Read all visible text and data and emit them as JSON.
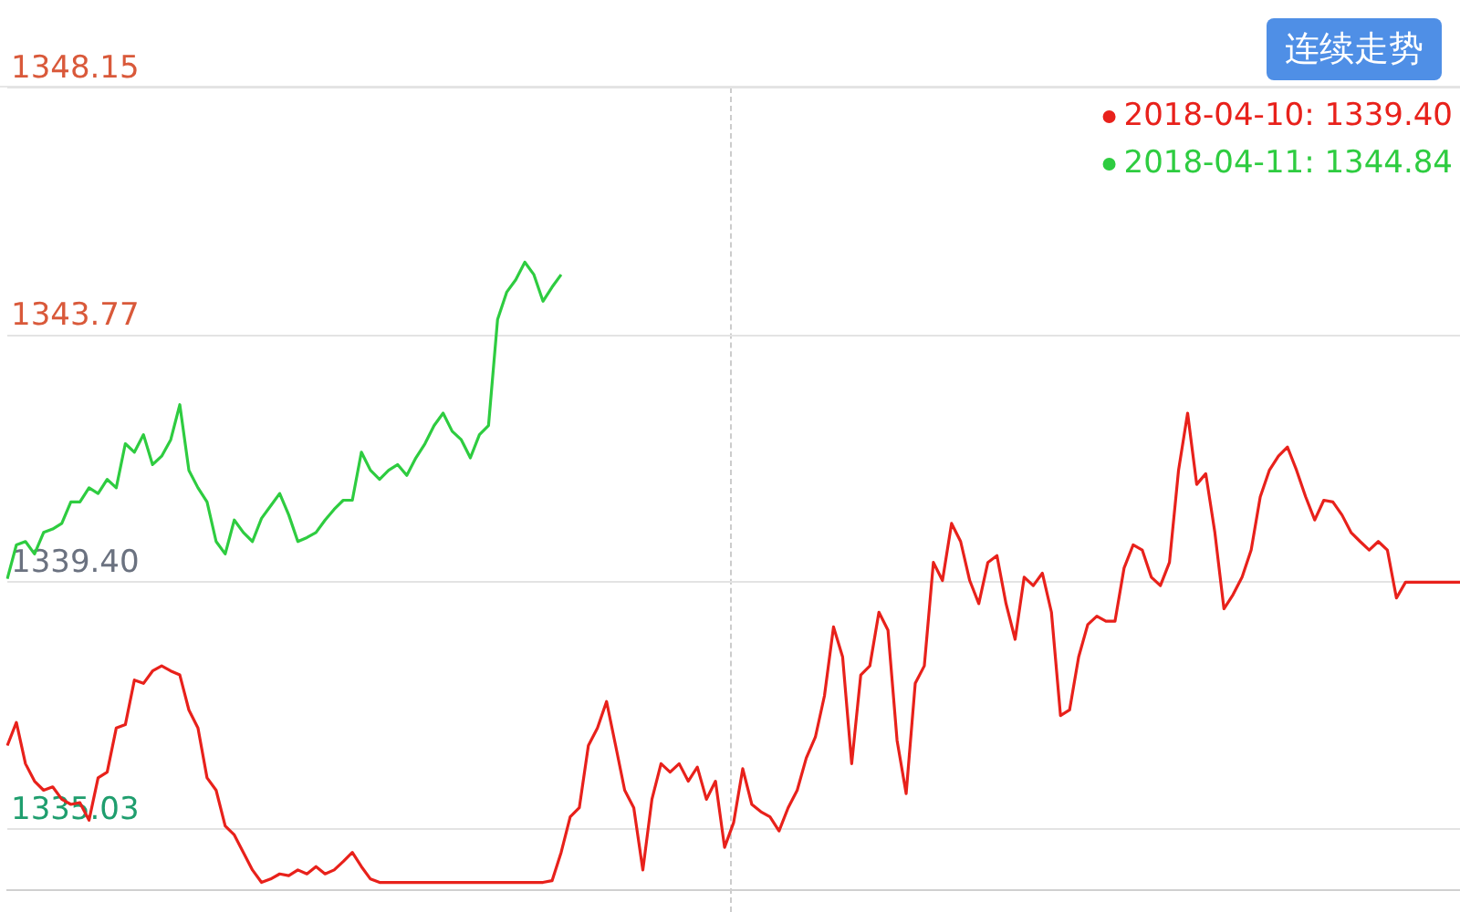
{
  "chart_data": {
    "type": "line",
    "annotations": [
      "连续走势"
    ],
    "categories": [
      null,
      null,
      null,
      null,
      null,
      null,
      null,
      null,
      null,
      null,
      null,
      null,
      null,
      null,
      null,
      null,
      null,
      null,
      null,
      null,
      null,
      null,
      null,
      null,
      null,
      null,
      null,
      null,
      null,
      null,
      null,
      null,
      null,
      null,
      null,
      null,
      null,
      null,
      null,
      null,
      null,
      null,
      null,
      null,
      null,
      null,
      null,
      null,
      null,
      null,
      null,
      null,
      null,
      null,
      null,
      null,
      null,
      null,
      null,
      null,
      null,
      null,
      null,
      null,
      null,
      null,
      null,
      null,
      null,
      null,
      null,
      null,
      null,
      null,
      null,
      null,
      null,
      null,
      null,
      null,
      null,
      null,
      null,
      null,
      null,
      null,
      null,
      null,
      null,
      null,
      null,
      null,
      null,
      null,
      null,
      null,
      null,
      null,
      null,
      null,
      null,
      null,
      null,
      null,
      null,
      null,
      null,
      null,
      null,
      null,
      null,
      null,
      null,
      null,
      null,
      null,
      null,
      null,
      null,
      null,
      null,
      null,
      null,
      null,
      null,
      null,
      null,
      null,
      null,
      null,
      null,
      null,
      null,
      null,
      null,
      null,
      null,
      null,
      null,
      null,
      null,
      null,
      null,
      null,
      null,
      null,
      null,
      null,
      null,
      null,
      null,
      null,
      null,
      null,
      null,
      null,
      null,
      null,
      null,
      null,
      null
    ],
    "series": [
      {
        "name": "2018-04-10: 1339.40",
        "color": "#e8211b",
        "values": [
          1336.51,
          1336.92,
          1336.19,
          1335.88,
          1335.72,
          1335.78,
          1335.56,
          1335.47,
          1335.5,
          1335.19,
          1335.94,
          1336.04,
          1336.82,
          1336.88,
          1337.67,
          1337.61,
          1337.83,
          1337.92,
          1337.83,
          1337.76,
          1337.14,
          1336.82,
          1335.94,
          1335.72,
          1335.09,
          1334.93,
          1334.62,
          1334.31,
          1334.09,
          1334.15,
          1334.24,
          1334.21,
          1334.31,
          1334.24,
          1334.37,
          1334.24,
          1334.31,
          1334.46,
          1334.62,
          1334.37,
          1334.15,
          1334.09,
          1334.09,
          1334.09,
          1334.09,
          1334.09,
          1334.09,
          1334.09,
          1334.09,
          1334.09,
          1334.09,
          1334.09,
          1334.09,
          1334.09,
          1334.09,
          1334.09,
          1334.09,
          1334.09,
          1334.09,
          1334.09,
          1334.12,
          1334.62,
          1335.25,
          1335.41,
          1336.51,
          1336.82,
          1337.29,
          1336.51,
          1335.72,
          1335.41,
          1334.31,
          1335.56,
          1336.19,
          1336.04,
          1336.19,
          1335.88,
          1336.13,
          1335.56,
          1335.88,
          1334.71,
          1335.15,
          1336.1,
          1335.47,
          1335.34,
          1335.25,
          1335.0,
          1335.41,
          1335.72,
          1336.29,
          1336.66,
          1337.39,
          1338.61,
          1338.08,
          1336.19,
          1337.76,
          1337.92,
          1338.87,
          1338.55,
          1336.6,
          1335.66,
          1337.61,
          1337.92,
          1339.75,
          1339.43,
          1340.44,
          1340.12,
          1339.43,
          1339.02,
          1339.75,
          1339.87,
          1339.02,
          1338.39,
          1339.49,
          1339.34,
          1339.56,
          1338.87,
          1337.04,
          1337.14,
          1338.08,
          1338.65,
          1338.8,
          1338.71,
          1338.71,
          1339.65,
          1340.06,
          1339.97,
          1339.49,
          1339.34,
          1339.75,
          1341.38,
          1342.39,
          1341.13,
          1341.32,
          1340.28,
          1338.93,
          1339.18,
          1339.49,
          1339.97,
          1340.91,
          1341.38,
          1341.63,
          1341.79,
          1341.38,
          1340.91,
          1340.5,
          1340.85,
          1340.82,
          1340.59,
          1340.28,
          1340.12,
          1339.97,
          1340.12,
          1339.97,
          1339.12,
          1339.4,
          1339.4,
          1339.4,
          1339.4,
          1339.4,
          1339.4,
          1339.4
        ]
      },
      {
        "name": "2018-04-11: 1344.84",
        "color": "#2ecc40",
        "values": [
          1339.46,
          1340.06,
          1340.12,
          1339.9,
          1340.28,
          1340.34,
          1340.44,
          1340.82,
          1340.82,
          1341.07,
          1340.97,
          1341.22,
          1341.07,
          1341.85,
          1341.7,
          1342.01,
          1341.48,
          1341.63,
          1341.92,
          1342.54,
          1341.38,
          1341.07,
          1340.82,
          1340.12,
          1339.9,
          1340.5,
          1340.28,
          1340.12,
          1340.53,
          1340.75,
          1340.97,
          1340.59,
          1340.12,
          1340.19,
          1340.28,
          1340.5,
          1340.69,
          1340.85,
          1340.85,
          1341.7,
          1341.38,
          1341.22,
          1341.38,
          1341.48,
          1341.29,
          1341.6,
          1341.85,
          1342.17,
          1342.39,
          1342.07,
          1341.92,
          1341.6,
          1342.01,
          1342.17,
          1344.05,
          1344.53,
          1344.75,
          1345.06,
          1344.84,
          1344.37,
          1344.62,
          1344.84,
          null,
          null,
          null,
          null,
          null,
          null,
          null,
          null,
          null,
          null,
          null,
          null,
          null,
          null,
          null,
          null,
          null,
          null,
          null,
          null,
          null,
          null,
          null,
          null,
          null,
          null,
          null,
          null,
          null,
          null,
          null,
          null,
          null,
          null,
          null,
          null,
          null,
          null,
          null,
          null,
          null,
          null,
          null,
          null,
          null,
          null,
          null,
          null,
          null,
          null,
          null,
          null,
          null,
          null,
          null,
          null,
          null,
          null,
          null,
          null,
          null,
          null,
          null,
          null,
          null,
          null,
          null,
          null,
          null,
          null,
          null,
          null,
          null,
          null,
          null,
          null,
          null,
          null,
          null,
          null,
          null,
          null,
          null,
          null,
          null,
          null,
          null,
          null,
          null,
          null,
          null,
          null,
          null,
          null,
          null,
          null,
          null,
          null,
          null
        ]
      }
    ],
    "ylim": [
      1333.96,
      1348.15
    ],
    "yticks": [
      {
        "value": 1348.15,
        "label": "1348.15"
      },
      {
        "value": 1343.77,
        "label": "1343.77"
      },
      {
        "value": 1339.4,
        "label": "1339.40"
      },
      {
        "value": 1335.03,
        "label": "1335.03"
      }
    ],
    "grid": "y",
    "legend": "top right",
    "marker": "none",
    "line_style": "solid"
  }
}
